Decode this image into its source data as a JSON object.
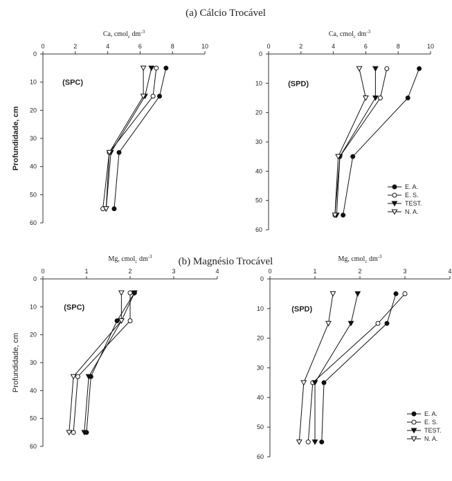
{
  "figure": {
    "title_a": "(a) Cálcio Trocável",
    "title_b": "(b) Magnésio Trocável"
  },
  "chart_data": [
    {
      "type": "line",
      "panel": "(SPC)",
      "xlabel": "Ca, cmolc dm-3",
      "ylabel": "Profundidade, cm",
      "xlim": [
        0,
        10
      ],
      "ylim": [
        0,
        60
      ],
      "xticks": [
        0,
        2,
        4,
        6,
        8,
        10
      ],
      "yticks": [
        0,
        10,
        20,
        30,
        40,
        50,
        60
      ],
      "y_inverted": true,
      "y": [
        5,
        15,
        35,
        55
      ],
      "series": [
        {
          "name": "E. A.",
          "marker": "filled-circle",
          "values": [
            7.6,
            7.2,
            4.7,
            4.4
          ]
        },
        {
          "name": "E. S.",
          "marker": "open-circle",
          "values": [
            7.0,
            6.8,
            4.1,
            3.7
          ]
        },
        {
          "name": "TEST.",
          "marker": "filled-triangle-down",
          "values": [
            6.7,
            6.3,
            4.2,
            3.9
          ]
        },
        {
          "name": "N. A.",
          "marker": "open-triangle-down",
          "values": [
            6.2,
            6.2,
            4.1,
            3.9
          ]
        }
      ]
    },
    {
      "type": "line",
      "panel": "(SPD)",
      "xlabel": "Ca, cmolc dm-3",
      "ylabel": "",
      "xlim": [
        0,
        10
      ],
      "ylim": [
        0,
        60
      ],
      "xticks": [
        0,
        2,
        4,
        6,
        8,
        10
      ],
      "yticks": [
        0,
        10,
        20,
        30,
        40,
        50,
        60
      ],
      "y_inverted": true,
      "y": [
        5,
        15,
        35,
        55
      ],
      "legend": "bottom-right",
      "series": [
        {
          "name": "E. A.",
          "marker": "filled-circle",
          "values": [
            9.3,
            8.6,
            5.2,
            4.6
          ]
        },
        {
          "name": "E. S.",
          "marker": "open-circle",
          "values": [
            7.3,
            6.9,
            4.4,
            4.1
          ]
        },
        {
          "name": "TEST.",
          "marker": "filled-triangle-down",
          "values": [
            6.6,
            6.6,
            4.4,
            4.2
          ]
        },
        {
          "name": "N. A.",
          "marker": "open-triangle-down",
          "values": [
            5.6,
            6.0,
            4.3,
            4.1
          ]
        }
      ]
    },
    {
      "type": "line",
      "panel": "(SPC)",
      "xlabel": "Mg, cmolc dm-3",
      "ylabel": "Profundidade, cm",
      "xlim": [
        0,
        4
      ],
      "ylim": [
        0,
        60
      ],
      "xticks": [
        0,
        1,
        2,
        3,
        4
      ],
      "yticks": [
        0,
        10,
        20,
        30,
        40,
        50,
        60
      ],
      "y_inverted": true,
      "y": [
        5,
        15,
        35,
        55
      ],
      "series": [
        {
          "name": "E. A.",
          "marker": "filled-circle",
          "values": [
            2.1,
            1.7,
            1.1,
            1.0
          ]
        },
        {
          "name": "E. S.",
          "marker": "open-circle",
          "values": [
            2.0,
            2.0,
            0.8,
            0.7
          ]
        },
        {
          "name": "TEST.",
          "marker": "filled-triangle-down",
          "values": [
            2.1,
            1.8,
            1.05,
            0.95
          ]
        },
        {
          "name": "N. A.",
          "marker": "open-triangle-down",
          "values": [
            1.8,
            1.8,
            0.7,
            0.6
          ]
        }
      ]
    },
    {
      "type": "line",
      "panel": "(SPD)",
      "xlabel": "Mg, cmolc dm-3",
      "ylabel": "",
      "xlim": [
        0,
        4
      ],
      "ylim": [
        0,
        60
      ],
      "xticks": [
        0,
        1,
        2,
        3,
        4
      ],
      "yticks": [
        0,
        10,
        20,
        30,
        40,
        50,
        60
      ],
      "y_inverted": true,
      "y": [
        5,
        15,
        35,
        55
      ],
      "legend": "bottom-right",
      "series": [
        {
          "name": "E. A.",
          "marker": "filled-circle",
          "values": [
            2.8,
            2.6,
            1.2,
            1.15
          ]
        },
        {
          "name": "E. S.",
          "marker": "open-circle",
          "values": [
            3.0,
            2.4,
            0.95,
            0.85
          ]
        },
        {
          "name": "TEST.",
          "marker": "filled-triangle-down",
          "values": [
            1.95,
            1.8,
            1.0,
            1.0
          ]
        },
        {
          "name": "N. A.",
          "marker": "open-triangle-down",
          "values": [
            1.4,
            1.3,
            0.75,
            0.65
          ]
        }
      ]
    }
  ]
}
